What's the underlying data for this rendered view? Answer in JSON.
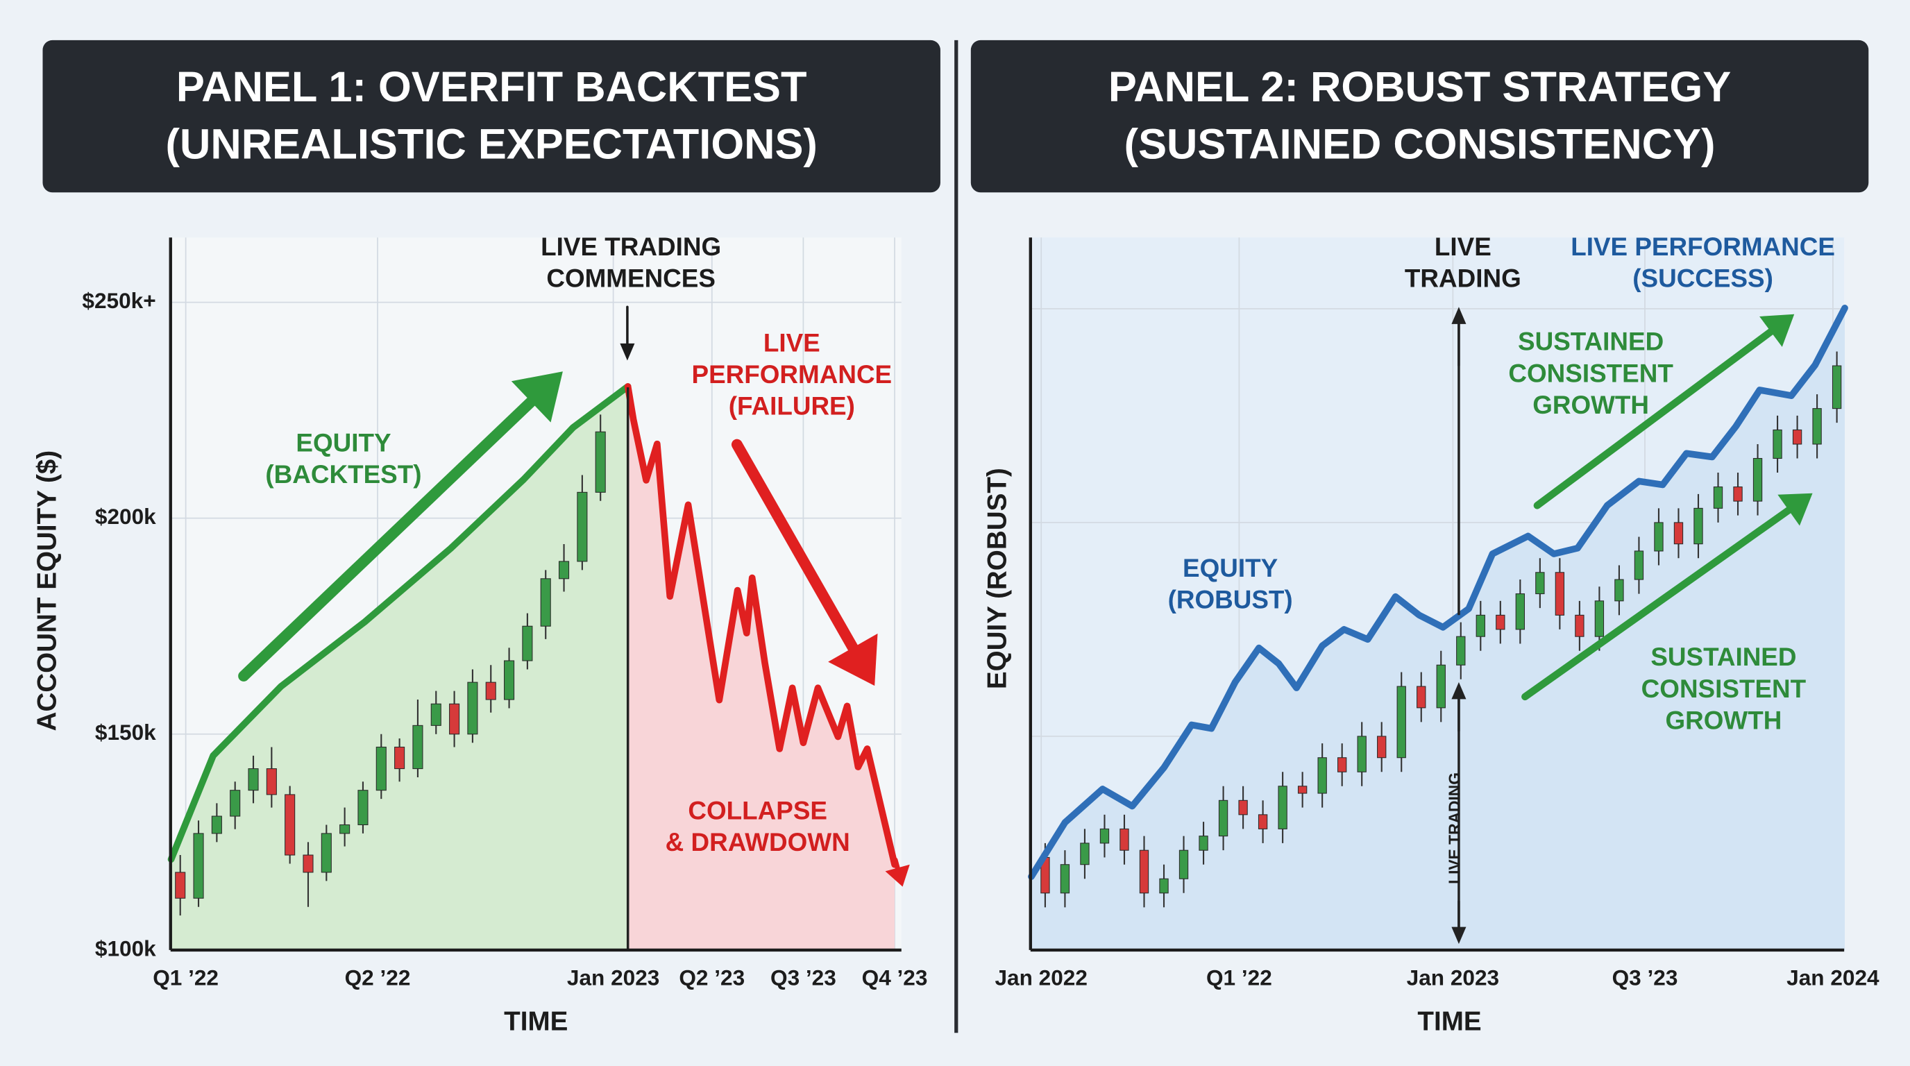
{
  "chart_data": [
    {
      "type": "candlestick",
      "title": [
        "PANEL 1: OVERFIT BACKTEST",
        "(UNREALISTIC EXPECTATIONS)"
      ],
      "xlabel": "TIME",
      "ylabel": "ACCOUNT EQUITY ($)",
      "xlim": [
        -0.53,
        39.47
      ],
      "ylim": [
        100000,
        265000
      ],
      "xticks": [
        {
          "value": 0.3,
          "label": "Q1 ’22"
        },
        {
          "value": 10.8,
          "label": "Q2 ’22"
        },
        {
          "value": 23.7,
          "label": "Jan 2023"
        },
        {
          "value": 29.1,
          "label": "Q2 ’23"
        },
        {
          "value": 34.1,
          "label": "Q3 ’23"
        },
        {
          "value": 39.1,
          "label": "Q4 ’23"
        }
      ],
      "yticks": [
        {
          "value": 100000,
          "label": "$100k"
        },
        {
          "value": 150000,
          "label": "$150k"
        },
        {
          "value": 200000,
          "label": "$200k"
        },
        {
          "value": 250000,
          "label": "$250k+"
        }
      ],
      "ytick_labels": true,
      "grid": true,
      "live_x": 24.5,
      "candles": {
        "up_color": "#3a9a48",
        "down_color": "#d63a3a",
        "x": [
          0,
          1,
          2,
          3,
          4,
          5,
          6,
          7,
          8,
          9,
          10,
          11,
          12,
          13,
          14,
          15,
          16,
          17,
          18,
          19,
          20,
          21,
          22,
          23
        ],
        "open": [
          118000,
          112000,
          127000,
          131000,
          137000,
          142000,
          136000,
          122000,
          118000,
          127000,
          129000,
          137000,
          147000,
          142000,
          152000,
          157000,
          150000,
          162000,
          158000,
          167000,
          175000,
          186000,
          190000,
          206000
        ],
        "high": [
          122000,
          130000,
          134000,
          139000,
          145000,
          147000,
          138000,
          125000,
          129000,
          133000,
          139000,
          150000,
          149000,
          158000,
          160000,
          160000,
          165000,
          166000,
          170000,
          178000,
          188000,
          194000,
          210000,
          224000
        ],
        "low": [
          108000,
          110000,
          125000,
          128000,
          134000,
          133000,
          120000,
          110000,
          116000,
          124000,
          127000,
          135000,
          139000,
          140000,
          150000,
          147000,
          148000,
          155000,
          156000,
          165000,
          172000,
          183000,
          188000,
          204000
        ],
        "close": [
          112000,
          127000,
          131000,
          137000,
          142000,
          136000,
          122000,
          118000,
          127000,
          129000,
          137000,
          147000,
          142000,
          152000,
          157000,
          150000,
          162000,
          158000,
          167000,
          175000,
          186000,
          190000,
          206000,
          220000
        ]
      },
      "series": [
        {
          "color": "#2f9a3c",
          "fill": "#d5ebd1",
          "x": [
            -0.5,
            1.8,
            5.5,
            10.1,
            14.8,
            18.8,
            21.5,
            24.5
          ],
          "values": [
            121000,
            145000,
            161000,
            176000,
            193000,
            209000,
            221000,
            230500
          ]
        },
        {
          "color": "#e02020",
          "fill": "#f8d5d8",
          "x": [
            24.5,
            24.8,
            25.5,
            26.1,
            26.8,
            27.8,
            29.5,
            30.5,
            31.0,
            31.3,
            32.0,
            32.8,
            33.5,
            34.1,
            34.9,
            36.0,
            36.5,
            37.1,
            37.6,
            39.1
          ],
          "values": [
            230500,
            222900,
            208800,
            217200,
            181900,
            203100,
            157900,
            183300,
            173400,
            186200,
            166400,
            146600,
            160700,
            148000,
            160700,
            149400,
            156500,
            142400,
            146600,
            119800
          ]
        }
      ],
      "annotations": [
        {
          "text": [
            "LIVE TRADING",
            "COMMENCES"
          ],
          "color": "#1c1c1c"
        },
        {
          "text": [
            "EQUITY",
            "(BACKTEST)"
          ],
          "color": "#2e8b3a"
        },
        {
          "text": [
            "LIVE",
            "PERFORMANCE",
            "(FAILURE)"
          ],
          "color": "#d21f1f"
        },
        {
          "text": [
            "COLLAPSE",
            "& DRAWDOWN"
          ],
          "color": "#d21f1f"
        }
      ]
    },
    {
      "type": "candlestick",
      "title": [
        "PANEL 2: ROBUST STRATEGY",
        "(SUSTAINED CONSISTENCY)"
      ],
      "xlabel": "TIME",
      "ylabel": "EQUIY (ROBUST)",
      "xlim": [
        -0.74,
        40.37
      ],
      "ylim": [
        0,
        100
      ],
      "xticks": [
        {
          "value": -0.2,
          "label": "Jan 2022"
        },
        {
          "value": 9.8,
          "label": "Q1 ’22"
        },
        {
          "value": 20.6,
          "label": "Jan 2023"
        },
        {
          "value": 30.3,
          "label": "Q3 ’23"
        },
        {
          "value": 39.8,
          "label": "Jan 2024"
        }
      ],
      "yticks": [
        30,
        60,
        90
      ],
      "ytick_labels": false,
      "grid": true,
      "live_x": 20.9,
      "candles": {
        "up_color": "#3a9a48",
        "down_color": "#d63a3a",
        "x": [
          0,
          1,
          2,
          3,
          4,
          5,
          6,
          7,
          8,
          9,
          10,
          11,
          12,
          13,
          14,
          15,
          16,
          17,
          18,
          19,
          20,
          21,
          22,
          23,
          24,
          25,
          26,
          27,
          28,
          29,
          30,
          31,
          32,
          33,
          34,
          35,
          36,
          37,
          38,
          39,
          40
        ],
        "open": [
          13,
          8,
          12,
          15,
          17,
          14,
          8,
          10,
          14,
          16,
          21,
          19,
          17,
          23,
          22,
          27,
          25,
          30,
          27,
          37,
          34,
          40,
          44,
          47,
          45,
          50,
          53,
          47,
          44,
          49,
          52,
          56,
          60,
          57,
          62,
          65,
          63,
          69,
          73,
          71,
          76
        ],
        "high": [
          15,
          14,
          17,
          19,
          19,
          16,
          12,
          16,
          18,
          23,
          23,
          21,
          25,
          25,
          29,
          29,
          32,
          32,
          39,
          39,
          42,
          46,
          49,
          49,
          52,
          55,
          55,
          49,
          51,
          54,
          58,
          62,
          62,
          64,
          67,
          67,
          71,
          75,
          75,
          78,
          84
        ],
        "low": [
          6,
          6,
          10,
          13,
          12,
          6,
          6,
          8,
          12,
          14,
          17,
          15,
          15,
          20,
          20,
          23,
          23,
          25,
          25,
          32,
          32,
          38,
          42,
          43,
          43,
          48,
          45,
          42,
          42,
          47,
          50,
          54,
          55,
          55,
          60,
          61,
          61,
          67,
          69,
          69,
          74
        ],
        "close": [
          8,
          12,
          15,
          17,
          14,
          8,
          10,
          14,
          16,
          21,
          19,
          17,
          23,
          22,
          27,
          25,
          30,
          27,
          37,
          34,
          40,
          44,
          47,
          45,
          50,
          53,
          47,
          44,
          49,
          52,
          56,
          60,
          57,
          62,
          65,
          63,
          69,
          73,
          71,
          76,
          82
        ]
      },
      "series": [
        {
          "color": "#2f6fb8",
          "fill": "#d3e4f4",
          "x": [
            -0.7,
            1.0,
            2.9,
            4.4,
            6.0,
            7.4,
            8.4,
            9.6,
            10.8,
            11.8,
            12.7,
            14.0,
            15.1,
            16.3,
            17.7,
            18.9,
            20.1,
            21.4,
            22.6,
            24.4,
            25.7,
            26.9,
            28.4,
            30.0,
            31.2,
            32.4,
            33.7,
            34.9,
            36.1,
            37.7,
            38.9,
            40.4
          ],
          "values": [
            10.3,
            17.9,
            22.6,
            20.2,
            25.6,
            31.6,
            31.1,
            37.6,
            42.4,
            40.2,
            36.8,
            42.7,
            45.0,
            43.6,
            49.6,
            47.0,
            45.3,
            47.9,
            55.6,
            58.1,
            55.6,
            56.4,
            62.4,
            65.8,
            65.3,
            69.7,
            69.2,
            73.5,
            78.6,
            77.8,
            82.1,
            90.1
          ]
        }
      ],
      "annotations": [
        {
          "text": [
            "LIVE",
            "TRADING"
          ],
          "color": "#1c1c1c"
        },
        {
          "text": [
            "LIVE PERFORMANCE",
            "(SUCCESS)"
          ],
          "color": "#1e5a9e"
        },
        {
          "text": [
            "SUSTAINED",
            "CONSISTENT",
            "GROWTH"
          ],
          "color": "#2e8b3a"
        },
        {
          "text": [
            "EQUITY",
            "(ROBUST)"
          ],
          "color": "#1e5a9e"
        },
        {
          "text": [
            "SUSTAINED",
            "CONSISTENT",
            "GROWTH"
          ],
          "color": "#2e8b3a"
        },
        {
          "text": [
            "LIVE TRADING"
          ],
          "color": "#1c1c1c"
        }
      ]
    }
  ]
}
